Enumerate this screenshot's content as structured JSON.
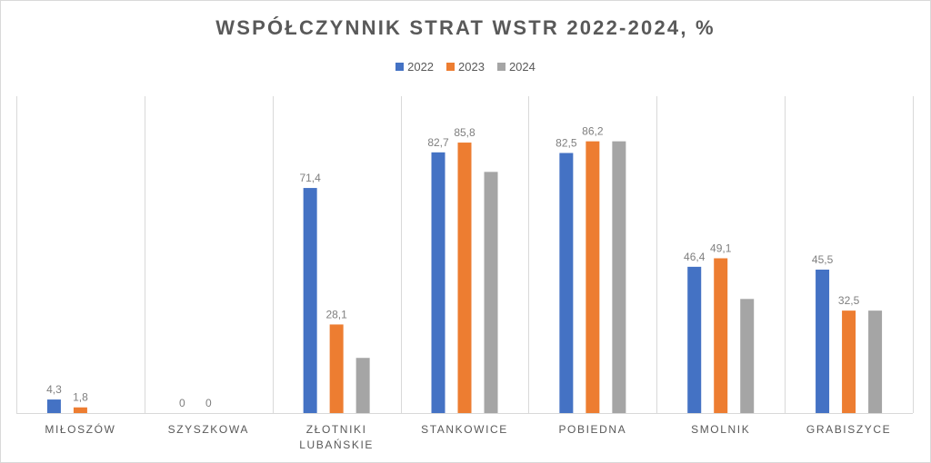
{
  "chart_data": {
    "type": "bar",
    "title": "WSPÓŁCZYNNIK STRAT WSTR 2022-2024, %",
    "categories": [
      [
        "MIŁOSZÓW"
      ],
      [
        "SZYSZKOWA"
      ],
      [
        "ZŁOTNIKI",
        "LUBAŃSKIE"
      ],
      [
        "STANKOWICE"
      ],
      [
        "POBIEDNA"
      ],
      [
        "SMOLNIK"
      ],
      [
        "GRABISZYCE"
      ]
    ],
    "series": [
      {
        "name": "2022",
        "color": "#4472c4",
        "values": [
          4.3,
          0,
          71.4,
          82.7,
          82.5,
          46.4,
          45.5
        ]
      },
      {
        "name": "2023",
        "color": "#ed7d31",
        "values": [
          1.8,
          0,
          28.1,
          85.8,
          86.2,
          49.1,
          32.5
        ]
      },
      {
        "name": "2024",
        "color": "#a5a5a5",
        "values": [
          null,
          null,
          17.5,
          76.5,
          86.2,
          36.2,
          32.5
        ]
      }
    ],
    "data_labels": [
      [
        "4,3",
        "0",
        "71,4",
        "82,7",
        "82,5",
        "46,4",
        "45,5"
      ],
      [
        "1,8",
        "0",
        "28,1",
        "85,8",
        "86,2",
        "49,1",
        "32,5"
      ],
      [
        "",
        "",
        "",
        "",
        "",
        "",
        ""
      ]
    ],
    "ylim": [
      0,
      100
    ],
    "grid": "vertical category separators",
    "legend_position": "top"
  }
}
